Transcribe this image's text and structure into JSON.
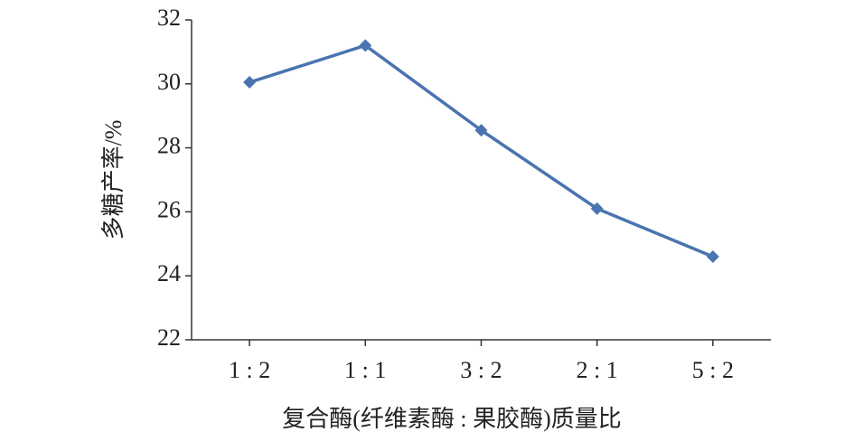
{
  "chart_data": {
    "type": "line",
    "xlabel": "复合酶(纤维素酶 : 果胶酶)质量比",
    "ylabel": "多糖产率/%",
    "categories": [
      "1 : 2",
      "1 : 1",
      "3 : 2",
      "2 : 1",
      "5 : 2"
    ],
    "series": [
      {
        "name": null,
        "color": "#4a74b0",
        "values": [
          30.05,
          31.2,
          28.55,
          26.1,
          24.6
        ]
      }
    ],
    "ylim": [
      22,
      32
    ],
    "yticks": [
      22,
      24,
      26,
      28,
      30,
      32
    ],
    "grid": false
  }
}
